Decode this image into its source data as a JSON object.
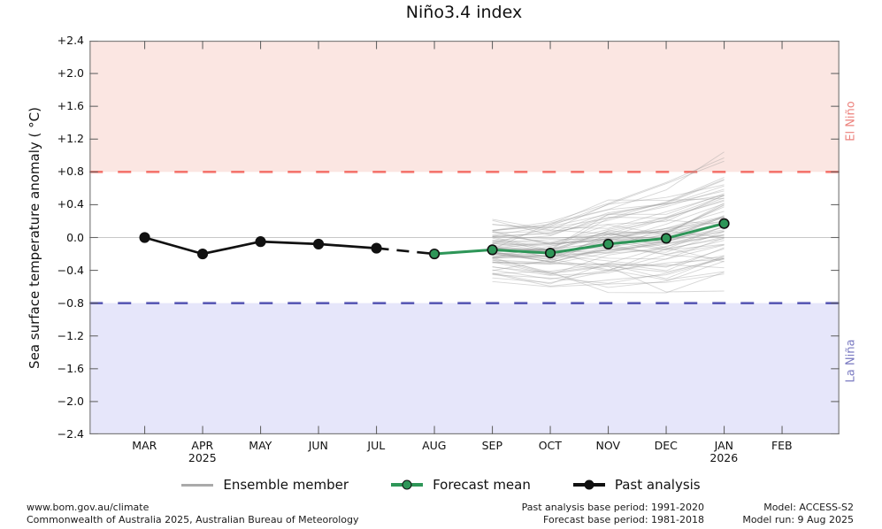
{
  "title": "Niño3.4 index",
  "colors": {
    "el_nino_band": "#fbe6e2",
    "la_nina_band": "#e6e6fa",
    "el_nino_threshold_line": "#f4756d",
    "la_nina_threshold_line": "#5a5ab5",
    "el_nino_label": "#ec827d",
    "la_nina_label": "#7a7ac1",
    "forecast_mean": "#2e9658",
    "past_analysis": "#111111",
    "ensemble_member": "#9a9a9a",
    "zero_line": "#c8c8c8",
    "frame": "#7f7f7f"
  },
  "y_axis": {
    "label": "Sea surface temperature anomaly ( °C)",
    "ticks": [
      {
        "value": 2.4,
        "label": "+2.4"
      },
      {
        "value": 2.0,
        "label": "+2.0"
      },
      {
        "value": 1.6,
        "label": "+1.6"
      },
      {
        "value": 1.2,
        "label": "+1.2"
      },
      {
        "value": 0.8,
        "label": "+0.8"
      },
      {
        "value": 0.4,
        "label": "+0.4"
      },
      {
        "value": 0.0,
        "label": "0.0"
      },
      {
        "value": -0.4,
        "label": "−0.4"
      },
      {
        "value": -0.8,
        "label": "−0.8"
      },
      {
        "value": -1.2,
        "label": "−1.2"
      },
      {
        "value": -1.6,
        "label": "−1.6"
      },
      {
        "value": -2.0,
        "label": "−2.0"
      },
      {
        "value": -2.4,
        "label": "−2.4"
      }
    ]
  },
  "x_axis": {
    "months": [
      "MAR",
      "APR",
      "MAY",
      "JUN",
      "JUL",
      "AUG",
      "SEP",
      "OCT",
      "NOV",
      "DEC",
      "JAN",
      "FEB"
    ],
    "years": [
      {
        "month_index": 1,
        "label": "2025"
      },
      {
        "month_index": 10,
        "label": "2026"
      }
    ]
  },
  "bands": {
    "el_nino_label": "El Niño",
    "la_nina_label": "La Niña"
  },
  "chart_data": {
    "type": "line",
    "title": "Niño3.4 index",
    "ylabel": "Sea surface temperature anomaly ( °C)",
    "ylim": [
      -2.4,
      2.4
    ],
    "ytick_step": 0.4,
    "categories": [
      "MAR",
      "APR",
      "MAY",
      "JUN",
      "JUL",
      "AUG",
      "SEP",
      "OCT",
      "NOV",
      "DEC",
      "JAN",
      "FEB"
    ],
    "thresholds": {
      "el_nino": 0.8,
      "la_nina": -0.8
    },
    "grid": "zero-line-only",
    "legend_position": "bottom-center",
    "series": [
      {
        "name": "Past analysis",
        "months": [
          "MAR",
          "APR",
          "MAY",
          "JUN",
          "JUL"
        ],
        "values": [
          0.0,
          -0.2,
          -0.05,
          -0.08,
          -0.13
        ]
      },
      {
        "name": "Forecast mean",
        "months": [
          "AUG",
          "SEP",
          "OCT",
          "NOV",
          "DEC",
          "JAN"
        ],
        "values": [
          -0.2,
          -0.15,
          -0.19,
          -0.08,
          -0.01,
          0.17
        ]
      }
    ],
    "connector": {
      "style": "dashed",
      "months": [
        "JUL",
        "AUG"
      ],
      "values": [
        -0.13,
        -0.2
      ]
    },
    "ensemble": {
      "name": "Ensemble member",
      "months": [
        "SEP",
        "OCT",
        "NOV",
        "DEC",
        "JAN"
      ],
      "member_count": 72,
      "mean": [
        -0.15,
        -0.19,
        -0.08,
        -0.01,
        0.17
      ],
      "spread_min": [
        -0.55,
        -0.72,
        -0.72,
        -0.72,
        -0.7
      ],
      "spread_max": [
        0.35,
        0.5,
        0.6,
        0.75,
        1.08
      ]
    }
  },
  "legend": {
    "items": [
      {
        "label": "Ensemble member",
        "swatch": "line",
        "color": "#aaaaaa"
      },
      {
        "label": "Forecast mean",
        "swatch": "line-marker",
        "color": "#2e9658"
      },
      {
        "label": "Past analysis",
        "swatch": "line-marker",
        "color": "#111111"
      }
    ]
  },
  "footer": {
    "left": [
      "www.bom.gov.au/climate",
      "Commonwealth of Australia 2025, Australian Bureau of Meteorology"
    ],
    "center": [
      "Past analysis base period: 1991-2020",
      "Forecast base period: 1981-2018"
    ],
    "right": [
      "Model: ACCESS-S2",
      "Model run: 9 Aug 2025"
    ]
  }
}
